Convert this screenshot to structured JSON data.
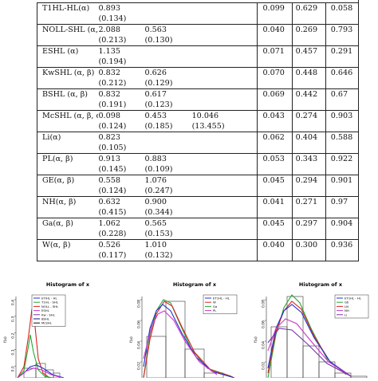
{
  "table": {
    "rows": [
      {
        "model": "T1HL-HL(α)",
        "p1": "0.893",
        "p2": "",
        "p3": "",
        "s1": "(0.134)",
        "s2": "",
        "s3": "",
        "m1": "0.099",
        "m2": "0.629",
        "m3": "0.058"
      },
      {
        "model": "NOLL-SHL (α, β)",
        "p1": "2.088",
        "p2": "0.563",
        "p3": "",
        "s1": "(0.213)",
        "s2": "(0.130)",
        "s3": "",
        "m1": "0.040",
        "m2": "0.269",
        "m3": "0.793"
      },
      {
        "model": "ESHL (α)",
        "p1": "1.135",
        "p2": "",
        "p3": "",
        "s1": "(0.194)",
        "s2": "",
        "s3": "",
        "m1": "0.071",
        "m2": "0.457",
        "m3": "0.291"
      },
      {
        "model": "KwSHL (α, β)",
        "p1": "0.832",
        "p2": "0.626",
        "p3": "",
        "s1": "(0.212)",
        "s2": "(0.129)",
        "s3": "",
        "m1": "0.070",
        "m2": "0.448",
        "m3": "0.646"
      },
      {
        "model": "BSHL (α, β)",
        "p1": "0.832",
        "p2": "0.617",
        "p3": "",
        "s1": "(0.191)",
        "s2": "(0.123)",
        "s3": "",
        "m1": "0.069",
        "m2": "0.442",
        "m3": "0.67"
      },
      {
        "model": "McSHL (α, β, c)",
        "p1": "0.098",
        "p2": "0.453",
        "p3": "10.046",
        "s1": "(0.124)",
        "s2": "(0.185)",
        "s3": "(13.455)",
        "m1": "0.043",
        "m2": "0.274",
        "m3": "0.903"
      },
      {
        "model": "Li(α)",
        "p1": "0.823",
        "p2": "",
        "p3": "",
        "s1": "(0.105)",
        "s2": "",
        "s3": "",
        "m1": "0.062",
        "m2": "0.404",
        "m3": "0.588"
      },
      {
        "model": "PL(α, β)",
        "p1": "0.913",
        "p2": "0.883",
        "p3": "",
        "s1": "(0.145)",
        "s2": "(0.109)",
        "s3": "",
        "m1": "0.053",
        "m2": "0.343",
        "m3": "0.922"
      },
      {
        "model": "GE(α, β)",
        "p1": "0.558",
        "p2": "1.076",
        "p3": "",
        "s1": "(0.124)",
        "s2": "(0.247)",
        "s3": "",
        "m1": "0.045",
        "m2": "0.294",
        "m3": "0.901"
      },
      {
        "model": "NH(α, β)",
        "p1": "0.632",
        "p2": "0.900",
        "p3": "",
        "s1": "(0.415)",
        "s2": "(0.344)",
        "s3": "",
        "m1": "0.041",
        "m2": "0.271",
        "m3": "0.97"
      },
      {
        "model": "Ga(α, β)",
        "p1": "1.062",
        "p2": "0.565",
        "p3": "",
        "s1": "(0.228)",
        "s2": "(0.153)",
        "s3": "",
        "m1": "0.045",
        "m2": "0.297",
        "m3": "0.904"
      },
      {
        "model": "W(α, β)",
        "p1": "0.526",
        "p2": "1.010",
        "p3": "",
        "s1": "(0.117)",
        "s2": "(0.132)",
        "s3": "",
        "m1": "0.040",
        "m2": "0.300",
        "m3": "0.936"
      }
    ]
  },
  "figures": {
    "panels": [
      {
        "title": "Histogram of x",
        "ylabel": "f(x)",
        "yticks": [
          "0.4",
          "0.3",
          "0.2",
          "0.1",
          "0.0"
        ],
        "legend": [
          "ETIHL - HL",
          "T1HL - SHL",
          "NOLL - SHL",
          "ESHL",
          "Kw - SHL",
          "BSHL",
          "McSHL"
        ]
      },
      {
        "title": "Histogram of x",
        "ylabel": "f(x)",
        "yticks": [
          "0.08",
          "0.06",
          "0.04",
          "0.02"
        ],
        "legend": [
          "ET1HL - HL",
          "W",
          "Ga",
          "PL"
        ]
      },
      {
        "title": "Histogram of x",
        "ylabel": "f(x)",
        "yticks": [
          "0.08",
          "0.06",
          "0.04",
          "0.02"
        ],
        "legend": [
          "ET1HL - HL",
          "GE",
          "LN",
          "NH",
          "Li"
        ]
      }
    ]
  },
  "colors": {
    "blue": "#2233cc",
    "red": "#dd2222",
    "green": "#22aa33",
    "magenta": "#cc33cc",
    "purple": "#7733aa",
    "darkblue": "#111188",
    "black": "#111111"
  }
}
